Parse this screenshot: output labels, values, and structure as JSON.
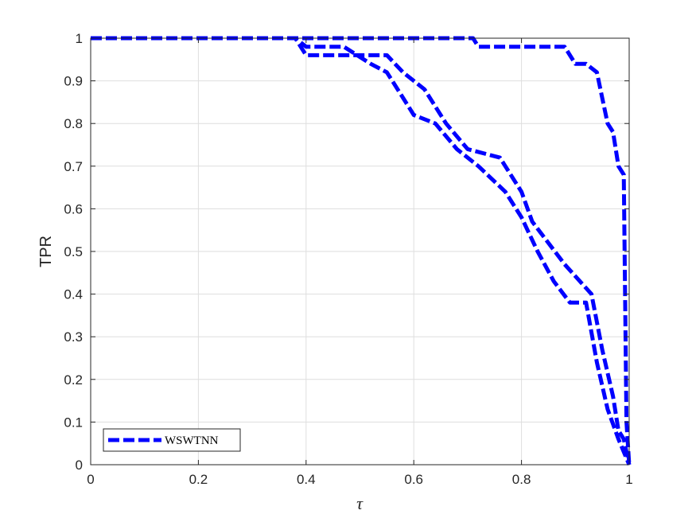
{
  "chart_data": {
    "type": "line",
    "title": "",
    "xlabel": "τ",
    "ylabel": "TPR",
    "xlim": [
      0,
      1
    ],
    "ylim": [
      0,
      1
    ],
    "xticks": [
      0,
      0.2,
      0.4,
      0.6,
      0.8,
      1
    ],
    "xtick_labels": [
      "0",
      "0.2",
      "0.4",
      "0.6",
      "0.8",
      "1"
    ],
    "yticks": [
      0,
      0.1,
      0.2,
      0.3,
      0.4,
      0.5,
      0.6,
      0.7,
      0.8,
      0.9,
      1
    ],
    "ytick_labels": [
      "0",
      "0.1",
      "0.2",
      "0.3",
      "0.4",
      "0.5",
      "0.6",
      "0.7",
      "0.8",
      "0.9",
      "1"
    ],
    "grid": true,
    "legend_position": "bottom-left",
    "legend": [
      "WSWTNN"
    ],
    "series_color": "#0000ff",
    "series": [
      {
        "name": "WSWTNN",
        "x": [
          0,
          0.38,
          0.4,
          0.55,
          0.58,
          0.62,
          0.66,
          0.7,
          0.76,
          0.8,
          0.82,
          0.85,
          0.88,
          0.93,
          0.95,
          0.97,
          0.98,
          0.99,
          1.0
        ],
        "y": [
          1,
          1,
          0.96,
          0.96,
          0.92,
          0.88,
          0.8,
          0.74,
          0.72,
          0.64,
          0.57,
          0.52,
          0.47,
          0.4,
          0.27,
          0.16,
          0.08,
          0.06,
          0
        ]
      },
      {
        "name": "WSWTNN",
        "x": [
          0,
          0.38,
          0.4,
          0.47,
          0.52,
          0.55,
          0.58,
          0.6,
          0.64,
          0.68,
          0.72,
          0.77,
          0.8,
          0.83,
          0.86,
          0.89,
          0.92,
          0.94,
          0.96,
          0.98,
          1.0
        ],
        "y": [
          1,
          1,
          0.98,
          0.98,
          0.94,
          0.92,
          0.86,
          0.82,
          0.8,
          0.74,
          0.7,
          0.64,
          0.58,
          0.5,
          0.43,
          0.38,
          0.38,
          0.24,
          0.13,
          0.06,
          0
        ]
      },
      {
        "name": "WSWTNN",
        "x": [
          0,
          0.71,
          0.72,
          0.8,
          0.88,
          0.9,
          0.92,
          0.94,
          0.95,
          0.96,
          0.97,
          0.98,
          0.99,
          0.995,
          1.0
        ],
        "y": [
          1,
          1,
          0.98,
          0.98,
          0.98,
          0.94,
          0.94,
          0.92,
          0.86,
          0.8,
          0.78,
          0.7,
          0.68,
          0.1,
          0
        ]
      }
    ]
  }
}
